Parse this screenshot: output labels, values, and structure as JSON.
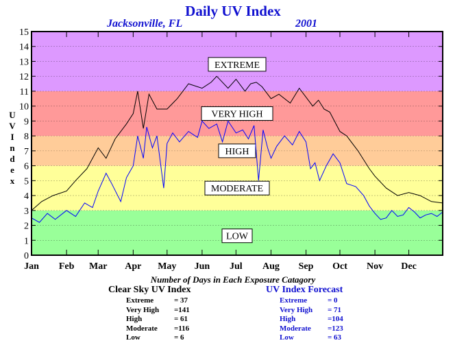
{
  "title": "Daily UV Index",
  "location": "Jacksonville, FL",
  "year": "2001",
  "ylabel": "UV Index",
  "footer_title": "Number of Days in Each Exposure Catagory",
  "colors": {
    "low": "#99ff99",
    "moderate": "#ffff99",
    "high": "#ffcc99",
    "very_high": "#ff9999",
    "extreme": "#dd99ff",
    "clear_sky_line": "#000000",
    "forecast_line": "#0000ff"
  },
  "clear_sky": {
    "heading": "Clear Sky UV Index",
    "rows": [
      {
        "name": "Extreme",
        "value": "=  37"
      },
      {
        "name": "Very High",
        "value": "=141"
      },
      {
        "name": "High",
        "value": "=  61"
      },
      {
        "name": "Moderate",
        "value": "=116"
      },
      {
        "name": "Low",
        "value": "=   6"
      }
    ]
  },
  "forecast": {
    "heading": "UV Index Forecast",
    "rows": [
      {
        "name": "Extreme",
        "value": "=   0"
      },
      {
        "name": "Very High",
        "value": "=  71"
      },
      {
        "name": "High",
        "value": "=104"
      },
      {
        "name": "Moderate",
        "value": "=123"
      },
      {
        "name": "Low",
        "value": "=  63"
      }
    ]
  },
  "chart_data": {
    "type": "line",
    "title": "Daily UV Index",
    "ylabel": "UV Index",
    "xlabel": "",
    "ylim": [
      0,
      15
    ],
    "xlim": [
      1,
      365
    ],
    "x_unit": "day of year 2001",
    "y_ticks": [
      0,
      1,
      2,
      3,
      4,
      5,
      6,
      7,
      8,
      9,
      10,
      11,
      12,
      13,
      14,
      15
    ],
    "x_ticks": [
      {
        "label": "Jan",
        "day": 1
      },
      {
        "label": "Feb",
        "day": 32
      },
      {
        "label": "Mar",
        "day": 60
      },
      {
        "label": "Apr",
        "day": 91
      },
      {
        "label": "May",
        "day": 121
      },
      {
        "label": "Jun",
        "day": 152
      },
      {
        "label": "Jul",
        "day": 182
      },
      {
        "label": "Aug",
        "day": 213
      },
      {
        "label": "Sep",
        "day": 244
      },
      {
        "label": "Oct",
        "day": 274
      },
      {
        "label": "Nov",
        "day": 305
      },
      {
        "label": "Dec",
        "day": 335
      }
    ],
    "bands": [
      {
        "label": "LOW",
        "from": 0,
        "to": 3,
        "color": "#99ff99",
        "label_at": 1.3
      },
      {
        "label": "MODERATE",
        "from": 3,
        "to": 6,
        "color": "#ffff99",
        "label_at": 4.5
      },
      {
        "label": "HIGH",
        "from": 6,
        "to": 8,
        "color": "#ffcc99",
        "label_at": 7
      },
      {
        "label": "VERY HIGH",
        "from": 8,
        "to": 11,
        "color": "#ff9999",
        "label_at": 9.5
      },
      {
        "label": "EXTREME",
        "from": 11,
        "to": 15,
        "color": "#dd99ff",
        "label_at": 12.8
      }
    ],
    "series": [
      {
        "name": "Clear Sky UV Index",
        "color": "#000000",
        "x": [
          1,
          10,
          20,
          32,
          40,
          50,
          60,
          67,
          75,
          85,
          91,
          95,
          100,
          105,
          112,
          121,
          130,
          140,
          152,
          160,
          165,
          175,
          182,
          190,
          195,
          200,
          205,
          213,
          220,
          230,
          238,
          244,
          250,
          255,
          260,
          265,
          274,
          280,
          290,
          300,
          305,
          315,
          325,
          335,
          345,
          355,
          365
        ],
        "y": [
          3.0,
          3.6,
          4.0,
          4.3,
          5.0,
          5.8,
          7.2,
          6.5,
          7.8,
          8.8,
          9.5,
          11.0,
          8.5,
          10.8,
          9.8,
          9.8,
          10.5,
          11.5,
          11.2,
          11.6,
          12.0,
          11.2,
          11.8,
          11.0,
          11.5,
          11.6,
          11.3,
          10.5,
          10.8,
          10.2,
          11.2,
          10.6,
          10.0,
          10.4,
          9.8,
          9.6,
          8.3,
          8.0,
          7.0,
          5.8,
          5.3,
          4.5,
          4.0,
          4.2,
          4.0,
          3.6,
          3.5
        ]
      },
      {
        "name": "UV Index Forecast",
        "color": "#0000ff",
        "x": [
          1,
          8,
          15,
          22,
          32,
          40,
          48,
          55,
          60,
          67,
          72,
          80,
          85,
          91,
          95,
          100,
          103,
          108,
          112,
          118,
          121,
          126,
          132,
          140,
          148,
          152,
          158,
          165,
          170,
          175,
          182,
          188,
          193,
          198,
          202,
          206,
          210,
          213,
          218,
          225,
          232,
          238,
          244,
          248,
          252,
          256,
          262,
          268,
          274,
          280,
          288,
          295,
          300,
          305,
          310,
          315,
          320,
          325,
          330,
          335,
          340,
          345,
          350,
          355,
          360,
          365
        ],
        "y": [
          2.5,
          2.2,
          2.8,
          2.4,
          3.0,
          2.6,
          3.5,
          3.2,
          4.3,
          5.5,
          4.8,
          3.6,
          5.2,
          6.0,
          8.0,
          6.5,
          8.6,
          7.2,
          8.0,
          4.5,
          7.5,
          8.2,
          7.6,
          8.3,
          7.9,
          9.0,
          8.5,
          8.8,
          7.6,
          9.0,
          8.2,
          8.4,
          7.8,
          8.7,
          5.0,
          8.4,
          7.2,
          6.5,
          7.3,
          8.0,
          7.4,
          8.3,
          7.6,
          5.8,
          6.2,
          5.0,
          6.0,
          6.8,
          6.2,
          4.8,
          4.6,
          4.0,
          3.3,
          2.8,
          2.4,
          2.5,
          3.0,
          2.6,
          2.7,
          3.2,
          2.9,
          2.5,
          2.7,
          2.8,
          2.6,
          2.9
        ]
      }
    ]
  }
}
